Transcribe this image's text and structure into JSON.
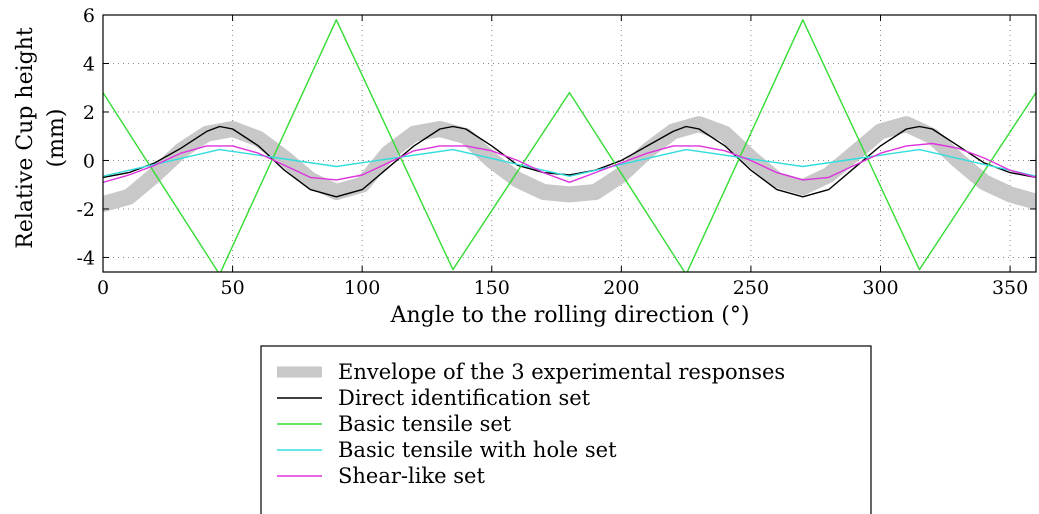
{
  "chart_data": {
    "type": "line",
    "title": "",
    "xlabel": "Angle to the rolling direction (°)",
    "ylabel_lines": [
      "Relative Cup height",
      "(mm)"
    ],
    "xlim": [
      0,
      360
    ],
    "ylim": [
      -4.6,
      6
    ],
    "x_ticks": [
      0,
      50,
      100,
      150,
      200,
      250,
      300,
      350
    ],
    "y_ticks": [
      -4,
      -2,
      0,
      2,
      4,
      6
    ],
    "grid": true,
    "legend_position": "below",
    "series": [
      {
        "name": "Envelope of the 3 experimental responses",
        "color": "#c8c8c8",
        "style": "band",
        "x": [
          0,
          10,
          20,
          30,
          40,
          50,
          60,
          70,
          80,
          90,
          100,
          110,
          120,
          130,
          140,
          150,
          160,
          170,
          180,
          190,
          200,
          210,
          220,
          230,
          240,
          250,
          260,
          270,
          280,
          290,
          300,
          310,
          320,
          330,
          340,
          350,
          360
        ],
        "y": [
          -1.8,
          -1.5,
          -0.6,
          0.4,
          1.1,
          1.3,
          0.9,
          0.1,
          -0.8,
          -1.3,
          -1.0,
          0.3,
          1.1,
          1.3,
          1.0,
          0.0,
          -0.8,
          -1.3,
          -1.4,
          -1.3,
          -0.6,
          0.4,
          1.2,
          1.5,
          1.1,
          0.1,
          -0.8,
          -1.1,
          -0.6,
          0.3,
          1.2,
          1.5,
          1.0,
          0.0,
          -0.9,
          -1.4,
          -1.7
        ]
      },
      {
        "name": "Direct identification set",
        "color": "#000000",
        "x": [
          0,
          10,
          20,
          30,
          40,
          45,
          50,
          60,
          70,
          80,
          90,
          100,
          110,
          120,
          130,
          135,
          140,
          150,
          160,
          170,
          180,
          190,
          200,
          210,
          220,
          225,
          230,
          240,
          250,
          260,
          270,
          280,
          290,
          300,
          310,
          315,
          320,
          330,
          340,
          350,
          360
        ],
        "y": [
          -0.7,
          -0.5,
          -0.1,
          0.5,
          1.2,
          1.4,
          1.3,
          0.6,
          -0.4,
          -1.2,
          -1.5,
          -1.2,
          -0.3,
          0.6,
          1.3,
          1.4,
          1.3,
          0.6,
          -0.2,
          -0.5,
          -0.6,
          -0.4,
          0.0,
          0.6,
          1.2,
          1.4,
          1.3,
          0.6,
          -0.4,
          -1.2,
          -1.5,
          -1.2,
          -0.3,
          0.6,
          1.3,
          1.4,
          1.3,
          0.6,
          -0.1,
          -0.5,
          -0.7
        ]
      },
      {
        "name": "Basic tensile set",
        "color": "#33dd33",
        "x": [
          0,
          45,
          90,
          135,
          180,
          225,
          270,
          315,
          360
        ],
        "y": [
          2.8,
          -4.7,
          5.8,
          -4.5,
          2.8,
          -4.7,
          5.8,
          -4.5,
          2.8
        ]
      },
      {
        "name": "Basic tensile with hole set",
        "color": "#33dddd",
        "x": [
          0,
          22.5,
          45,
          67.5,
          90,
          112.5,
          135,
          157.5,
          180,
          202.5,
          225,
          247.5,
          270,
          292.5,
          315,
          337.5,
          360
        ],
        "y": [
          -0.65,
          -0.1,
          0.45,
          0.1,
          -0.25,
          0.1,
          0.45,
          -0.1,
          -0.65,
          -0.1,
          0.45,
          0.1,
          -0.25,
          0.1,
          0.45,
          -0.1,
          -0.65
        ]
      },
      {
        "name": "Shear-like set",
        "color": "#dd33dd",
        "x": [
          0,
          10,
          20,
          30,
          40,
          50,
          60,
          70,
          80,
          90,
          100,
          110,
          120,
          130,
          140,
          150,
          160,
          170,
          180,
          190,
          200,
          210,
          220,
          230,
          240,
          250,
          260,
          270,
          280,
          290,
          300,
          310,
          320,
          330,
          340,
          350,
          360
        ],
        "y": [
          -0.9,
          -0.6,
          -0.2,
          0.3,
          0.6,
          0.6,
          0.3,
          -0.2,
          -0.7,
          -0.8,
          -0.6,
          -0.1,
          0.4,
          0.6,
          0.6,
          0.4,
          0.0,
          -0.5,
          -0.9,
          -0.5,
          -0.1,
          0.3,
          0.6,
          0.6,
          0.4,
          0.0,
          -0.5,
          -0.8,
          -0.7,
          -0.2,
          0.3,
          0.6,
          0.7,
          0.5,
          0.1,
          -0.4,
          -0.7
        ]
      }
    ]
  }
}
